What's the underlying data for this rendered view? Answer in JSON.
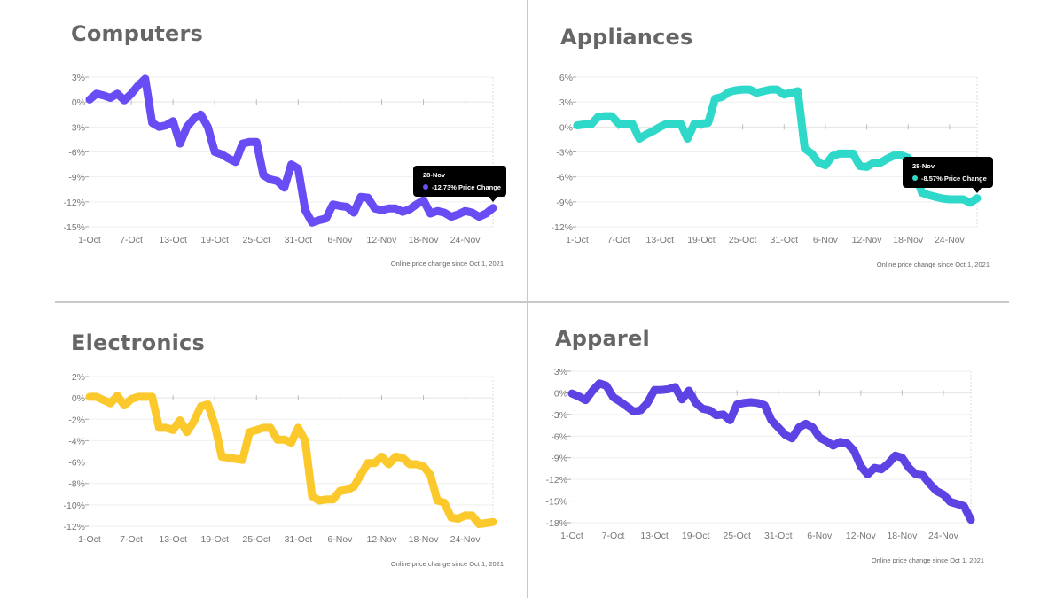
{
  "chart_data": [
    {
      "type": "line",
      "title": "Computers",
      "color": "#6a4cf5",
      "x_labels": [
        "1-Oct",
        "7-Oct",
        "13-Oct",
        "19-Oct",
        "25-Oct",
        "31-Oct",
        "6-Nov",
        "12-Nov",
        "18-Nov",
        "24-Nov"
      ],
      "x_label_days": [
        0,
        6,
        12,
        18,
        24,
        30,
        36,
        42,
        48,
        54
      ],
      "y_ticks": [
        3,
        0,
        -3,
        -6,
        -9,
        -12,
        -15
      ],
      "ylim": [
        -15,
        3
      ],
      "y_unit": "%",
      "x_range_days": [
        0,
        58
      ],
      "values": [
        0.3,
        1,
        0.8,
        0.5,
        1,
        0.2,
        1,
        2,
        2.8,
        -2.5,
        -3,
        -2.8,
        -2.3,
        -5,
        -3,
        -2,
        -1.5,
        -3,
        -6,
        -6.3,
        -6.8,
        -7.2,
        -5,
        -4.8,
        -4.8,
        -8.8,
        -9.3,
        -9.5,
        -10.3,
        -7.5,
        -8,
        -13,
        -14.5,
        -14.2,
        -14,
        -12.3,
        -12.5,
        -12.6,
        -13.3,
        -11.4,
        -11.5,
        -12.8,
        -13,
        -12.8,
        -12.8,
        -13.2,
        -12.9,
        -12.3,
        -11.8,
        -13.4,
        -13.1,
        -13.3,
        -13.8,
        -13.5,
        -13.1,
        -13.3,
        -13.8,
        -13.4,
        -12.73
      ],
      "note": "Online price change since Oct 1, 2021",
      "tooltip": {
        "date": "28-Nov",
        "text": "-12.73% Price Change"
      }
    },
    {
      "type": "line",
      "title": "Appliances",
      "color": "#2fd9c9",
      "x_labels": [
        "1-Oct",
        "7-Oct",
        "13-Oct",
        "19-Oct",
        "25-Oct",
        "31-Oct",
        "6-Nov",
        "12-Nov",
        "18-Nov",
        "24-Nov"
      ],
      "x_label_days": [
        0,
        6,
        12,
        18,
        24,
        30,
        36,
        42,
        48,
        54
      ],
      "y_ticks": [
        6,
        3,
        0,
        -3,
        -6,
        -9,
        -12
      ],
      "ylim": [
        -12,
        6
      ],
      "y_unit": "%",
      "x_range_days": [
        0,
        58
      ],
      "values": [
        0.2,
        0.3,
        0.3,
        1.2,
        1.3,
        1.3,
        0.4,
        0.4,
        0.4,
        -1.4,
        -0.9,
        -0.5,
        0,
        0.4,
        0.4,
        0.4,
        -1.4,
        0.4,
        0.4,
        0.5,
        3.4,
        3.6,
        4.2,
        4.4,
        4.5,
        4.5,
        4.1,
        4.3,
        4.5,
        4.5,
        3.9,
        4.1,
        4.3,
        -2.6,
        -3.2,
        -4.3,
        -4.6,
        -3.5,
        -3.2,
        -3.2,
        -3.2,
        -4.7,
        -4.8,
        -4.3,
        -4.3,
        -3.8,
        -3.4,
        -3.4,
        -3.7,
        -5.5,
        -7.9,
        -8.2,
        -8.4,
        -8.6,
        -8.7,
        -8.7,
        -8.7,
        -9.1,
        -8.57
      ],
      "note": "Online price change since Oct 1, 2021",
      "tooltip": {
        "date": "28-Nov",
        "text": "-8.57% Price Change"
      }
    },
    {
      "type": "line",
      "title": "Electronics",
      "color": "#fcc92c",
      "x_labels": [
        "1-Oct",
        "7-Oct",
        "13-Oct",
        "19-Oct",
        "25-Oct",
        "31-Oct",
        "6-Nov",
        "12-Nov",
        "18-Nov",
        "24-Nov"
      ],
      "x_label_days": [
        0,
        6,
        12,
        18,
        24,
        30,
        36,
        42,
        48,
        54
      ],
      "y_ticks": [
        2,
        0,
        -2,
        -4,
        -6,
        -8,
        -10,
        -12
      ],
      "ylim": [
        -12,
        2
      ],
      "y_unit": "%",
      "x_range_days": [
        0,
        58
      ],
      "values": [
        0.1,
        0.1,
        -0.2,
        -0.5,
        0.2,
        -0.7,
        -0.1,
        0.1,
        0.1,
        0.1,
        -2.8,
        -2.8,
        -3,
        -2.1,
        -3.2,
        -2.2,
        -0.8,
        -0.6,
        -2.5,
        -5.5,
        -5.6,
        -5.7,
        -5.8,
        -3.2,
        -3,
        -2.8,
        -2.8,
        -3.9,
        -3.9,
        -4.2,
        -2.8,
        -4,
        -9.2,
        -9.6,
        -9.5,
        -9.5,
        -8.7,
        -8.6,
        -8.3,
        -7.2,
        -6.1,
        -6.1,
        -5.5,
        -6.2,
        -5.5,
        -5.6,
        -6.2,
        -6.2,
        -6.4,
        -7.2,
        -9.6,
        -9.8,
        -11.2,
        -11.3,
        -11,
        -11,
        -11.8,
        -11.7,
        -11.6
      ],
      "note": "Online price change since Oct 1, 2021"
    },
    {
      "type": "line",
      "title": "Apparel",
      "color": "#5d43e3",
      "x_labels": [
        "1-Oct",
        "7-Oct",
        "13-Oct",
        "19-Oct",
        "25-Oct",
        "31-Oct",
        "6-Nov",
        "12-Nov",
        "18-Nov",
        "24-Nov"
      ],
      "x_label_days": [
        0,
        6,
        12,
        18,
        24,
        30,
        36,
        42,
        48,
        54
      ],
      "y_ticks": [
        3,
        0,
        -3,
        -6,
        -9,
        -12,
        -15,
        -18
      ],
      "ylim": [
        -18,
        3
      ],
      "y_unit": "%",
      "x_range_days": [
        0,
        58
      ],
      "values": [
        -0.1,
        -0.5,
        -1,
        0.3,
        1.3,
        1,
        -0.6,
        -1.2,
        -1.9,
        -2.6,
        -2.4,
        -1.4,
        0.4,
        0.4,
        0.5,
        0.8,
        -0.9,
        0.3,
        -1.4,
        -2.2,
        -2.4,
        -3.1,
        -3,
        -3.8,
        -1.6,
        -1.4,
        -1.3,
        -1.4,
        -1.7,
        -3.8,
        -4.8,
        -5.8,
        -6.3,
        -4.8,
        -4.3,
        -4.8,
        -6.2,
        -6.7,
        -7.3,
        -6.8,
        -7,
        -8,
        -10.2,
        -11.3,
        -10.4,
        -10.6,
        -9.8,
        -8.7,
        -9,
        -10.4,
        -11.3,
        -11.4,
        -12.6,
        -13.6,
        -14.1,
        -15.1,
        -15.4,
        -15.7,
        -17.6
      ],
      "note": "Online price change since Oct 1, 2021"
    }
  ]
}
